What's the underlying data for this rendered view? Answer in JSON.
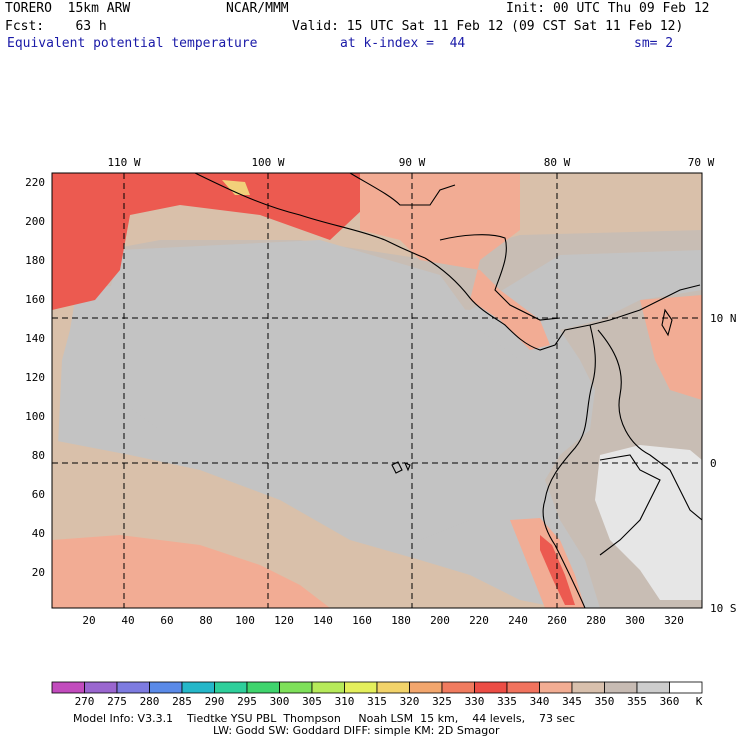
{
  "header": {
    "model": "TORERO  15km ARW",
    "center": "NCAR/MMM",
    "init": "Init: 00 UTC Thu 09 Feb 12",
    "fcst": "Fcst:    63 h",
    "valid": "Valid: 15 UTC Sat 11 Feb 12 (09 CST Sat 11 Feb 12)",
    "field": "Equivalent potential temperature",
    "level": "at k-index =  44",
    "smooth": "sm= 2"
  },
  "map": {
    "top_lon_labels": [
      "110 W",
      "100 W",
      "90 W",
      "80 W",
      "70 W"
    ],
    "right_lat_labels": [
      "10 N",
      "0",
      "10 S"
    ],
    "left_grid_labels": [
      "220",
      "200",
      "180",
      "160",
      "140",
      "120",
      "100",
      "80",
      "60",
      "40",
      "20"
    ],
    "bottom_grid_labels": [
      "20",
      "40",
      "60",
      "80",
      "100",
      "120",
      "140",
      "160",
      "180",
      "200",
      "220",
      "240",
      "260",
      "280",
      "300",
      "320"
    ],
    "colors": {
      "ocean_main": "#c3c3c3",
      "ocean_warm": "#c8bdb4",
      "mid": "#d9c0aa",
      "warm1": "#f2ac94",
      "warm2": "#f08a78",
      "hot": "#ec5a50",
      "cool_land": "#e6e6e6",
      "grid": "#000000"
    }
  },
  "colorbar": {
    "labels": [
      "270",
      "275",
      "280",
      "285",
      "290",
      "295",
      "300",
      "305",
      "310",
      "315",
      "320",
      "325",
      "330",
      "335",
      "340",
      "345",
      "350",
      "355",
      "360"
    ],
    "unit": "K",
    "colors": [
      "#c24bbd",
      "#9a66cf",
      "#7d7be0",
      "#5a8ae8",
      "#25b7c9",
      "#2ecf9b",
      "#3fd46d",
      "#7ee05a",
      "#b6ea5a",
      "#e4ef5c",
      "#f2d36a",
      "#f2a66d",
      "#f07b5f",
      "#ec4d45",
      "#f1735e",
      "#f2ad93",
      "#d8c0ad",
      "#c7bbb3",
      "#cdcdcd",
      "#ffffff"
    ]
  },
  "info": {
    "line1": "Model Info: V3.3.1    Tiedtke YSU PBL  Thompson     Noah LSM  15 km,    44 levels,    73 sec",
    "line2": "LW: Godd SW: Goddard DIFF: simple KM: 2D Smagor"
  }
}
